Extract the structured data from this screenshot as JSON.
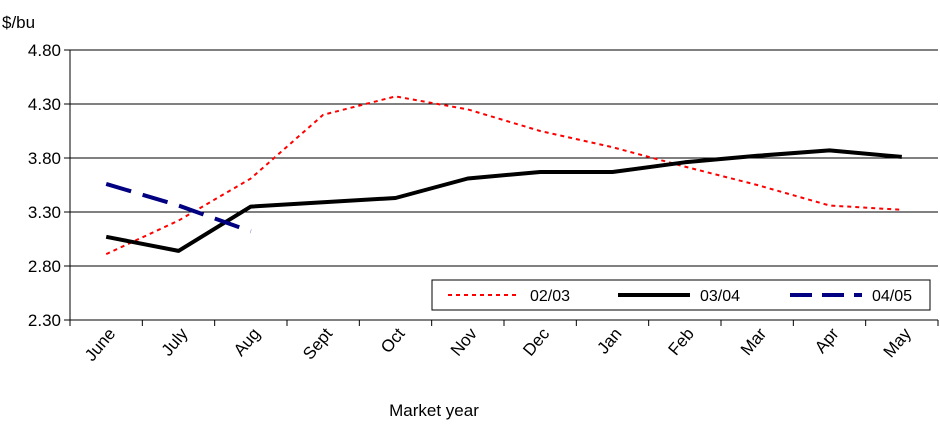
{
  "chart_data": {
    "type": "line",
    "title": "",
    "ylabel": "$/bu",
    "xlabel": "Market year",
    "categories": [
      "June",
      "July",
      "Aug",
      "Sept",
      "Oct",
      "Nov",
      "Dec",
      "Jan",
      "Feb",
      "Mar",
      "Apr",
      "May"
    ],
    "ylim": [
      2.3,
      4.8
    ],
    "yticks": [
      "2.30",
      "2.80",
      "3.30",
      "3.80",
      "4.30",
      "4.80"
    ],
    "grid": "horizontal",
    "legend_position": "bottom-right",
    "series": [
      {
        "name": "02/03",
        "style": "dotted",
        "color": "#ff0000",
        "values": [
          2.91,
          3.22,
          3.61,
          4.2,
          4.37,
          4.25,
          4.05,
          3.9,
          3.72,
          3.55,
          3.36,
          3.32
        ]
      },
      {
        "name": "03/04",
        "style": "solid",
        "color": "#000000",
        "values": [
          3.07,
          2.94,
          3.35,
          3.39,
          3.43,
          3.61,
          3.67,
          3.67,
          3.76,
          3.82,
          3.87,
          3.81
        ]
      },
      {
        "name": "04/05",
        "style": "dashed",
        "color": "#000080",
        "values": [
          3.56,
          3.36,
          3.12,
          null,
          null,
          null,
          null,
          null,
          null,
          null,
          null,
          null
        ]
      }
    ]
  }
}
